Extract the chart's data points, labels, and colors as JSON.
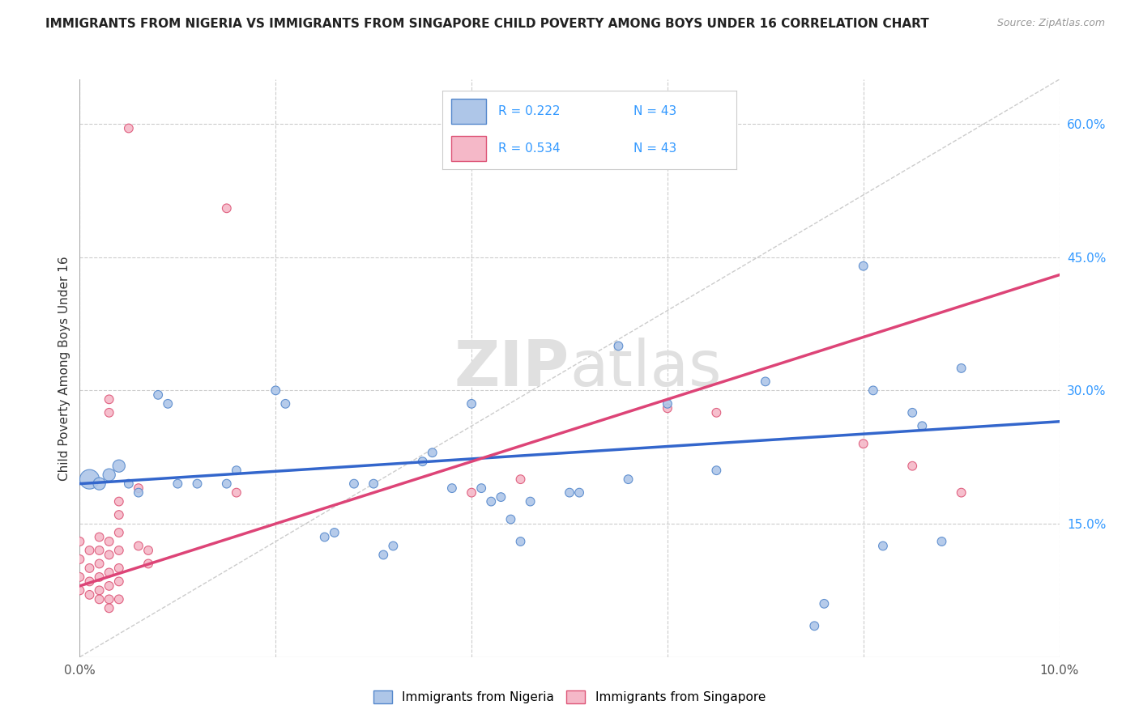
{
  "title": "IMMIGRANTS FROM NIGERIA VS IMMIGRANTS FROM SINGAPORE CHILD POVERTY AMONG BOYS UNDER 16 CORRELATION CHART",
  "source": "Source: ZipAtlas.com",
  "ylabel": "Child Poverty Among Boys Under 16",
  "xlim": [
    0.0,
    0.1
  ],
  "ylim": [
    0.0,
    0.65
  ],
  "x_ticks": [
    0.0,
    0.02,
    0.04,
    0.06,
    0.08,
    0.1
  ],
  "x_tick_labels": [
    "0.0%",
    "",
    "",
    "",
    "",
    "10.0%"
  ],
  "y_ticks_right": [
    0.15,
    0.3,
    0.45,
    0.6
  ],
  "y_tick_labels_right": [
    "15.0%",
    "30.0%",
    "45.0%",
    "60.0%"
  ],
  "nigeria_color": "#aec6e8",
  "singapore_color": "#f5b8c8",
  "nigeria_edge_color": "#5588cc",
  "singapore_edge_color": "#dd5577",
  "nigeria_line_color": "#3366cc",
  "singapore_line_color": "#dd4477",
  "legend_text_color": "#3399ff",
  "watermark_color": "#e8e8e8",
  "nigeria_scatter": [
    [
      0.001,
      0.2
    ],
    [
      0.002,
      0.195
    ],
    [
      0.003,
      0.205
    ],
    [
      0.004,
      0.215
    ],
    [
      0.005,
      0.195
    ],
    [
      0.006,
      0.185
    ],
    [
      0.008,
      0.295
    ],
    [
      0.009,
      0.285
    ],
    [
      0.01,
      0.195
    ],
    [
      0.012,
      0.195
    ],
    [
      0.015,
      0.195
    ],
    [
      0.016,
      0.21
    ],
    [
      0.02,
      0.3
    ],
    [
      0.021,
      0.285
    ],
    [
      0.025,
      0.135
    ],
    [
      0.026,
      0.14
    ],
    [
      0.028,
      0.195
    ],
    [
      0.03,
      0.195
    ],
    [
      0.031,
      0.115
    ],
    [
      0.032,
      0.125
    ],
    [
      0.035,
      0.22
    ],
    [
      0.036,
      0.23
    ],
    [
      0.038,
      0.19
    ],
    [
      0.04,
      0.285
    ],
    [
      0.041,
      0.19
    ],
    [
      0.042,
      0.175
    ],
    [
      0.043,
      0.18
    ],
    [
      0.044,
      0.155
    ],
    [
      0.045,
      0.13
    ],
    [
      0.046,
      0.175
    ],
    [
      0.05,
      0.185
    ],
    [
      0.051,
      0.185
    ],
    [
      0.055,
      0.35
    ],
    [
      0.056,
      0.2
    ],
    [
      0.06,
      0.285
    ],
    [
      0.065,
      0.21
    ],
    [
      0.07,
      0.31
    ],
    [
      0.075,
      0.035
    ],
    [
      0.076,
      0.06
    ],
    [
      0.08,
      0.44
    ],
    [
      0.081,
      0.3
    ],
    [
      0.082,
      0.125
    ],
    [
      0.085,
      0.275
    ],
    [
      0.086,
      0.26
    ],
    [
      0.088,
      0.13
    ],
    [
      0.09,
      0.325
    ]
  ],
  "nigeria_sizes": [
    300,
    120,
    120,
    120,
    60,
    60,
    60,
    60,
    60,
    60,
    60,
    60,
    60,
    60,
    60,
    60,
    60,
    60,
    60,
    60,
    60,
    60,
    60,
    60,
    60,
    60,
    60,
    60,
    60,
    60,
    60,
    60,
    60,
    60,
    60,
    60,
    60,
    60,
    60,
    60,
    60,
    60,
    60,
    60,
    60,
    60
  ],
  "singapore_scatter": [
    [
      0.0,
      0.13
    ],
    [
      0.0,
      0.11
    ],
    [
      0.0,
      0.09
    ],
    [
      0.0,
      0.075
    ],
    [
      0.001,
      0.12
    ],
    [
      0.001,
      0.1
    ],
    [
      0.001,
      0.085
    ],
    [
      0.001,
      0.07
    ],
    [
      0.002,
      0.135
    ],
    [
      0.002,
      0.12
    ],
    [
      0.002,
      0.105
    ],
    [
      0.002,
      0.09
    ],
    [
      0.002,
      0.075
    ],
    [
      0.002,
      0.065
    ],
    [
      0.003,
      0.29
    ],
    [
      0.003,
      0.275
    ],
    [
      0.003,
      0.13
    ],
    [
      0.003,
      0.115
    ],
    [
      0.003,
      0.095
    ],
    [
      0.003,
      0.08
    ],
    [
      0.003,
      0.065
    ],
    [
      0.003,
      0.055
    ],
    [
      0.004,
      0.175
    ],
    [
      0.004,
      0.16
    ],
    [
      0.004,
      0.14
    ],
    [
      0.004,
      0.12
    ],
    [
      0.004,
      0.1
    ],
    [
      0.004,
      0.085
    ],
    [
      0.004,
      0.065
    ],
    [
      0.005,
      0.595
    ],
    [
      0.006,
      0.19
    ],
    [
      0.006,
      0.125
    ],
    [
      0.007,
      0.12
    ],
    [
      0.007,
      0.105
    ],
    [
      0.015,
      0.505
    ],
    [
      0.016,
      0.185
    ],
    [
      0.04,
      0.185
    ],
    [
      0.045,
      0.2
    ],
    [
      0.06,
      0.28
    ],
    [
      0.065,
      0.275
    ],
    [
      0.08,
      0.24
    ],
    [
      0.085,
      0.215
    ],
    [
      0.09,
      0.185
    ]
  ],
  "singapore_sizes": [
    60,
    60,
    60,
    60,
    60,
    60,
    60,
    60,
    60,
    60,
    60,
    60,
    60,
    60,
    60,
    60,
    60,
    60,
    60,
    60,
    60,
    60,
    60,
    60,
    60,
    60,
    60,
    60,
    60,
    60,
    60,
    60,
    60,
    60,
    60,
    60,
    60,
    60,
    60,
    60,
    60,
    60,
    60
  ],
  "nigeria_trendline": [
    [
      0.0,
      0.195
    ],
    [
      0.1,
      0.265
    ]
  ],
  "singapore_trendline": [
    [
      0.0,
      0.08
    ],
    [
      0.1,
      0.43
    ]
  ],
  "diagonal_line": [
    [
      0.0,
      0.0
    ],
    [
      0.1,
      0.65
    ]
  ]
}
